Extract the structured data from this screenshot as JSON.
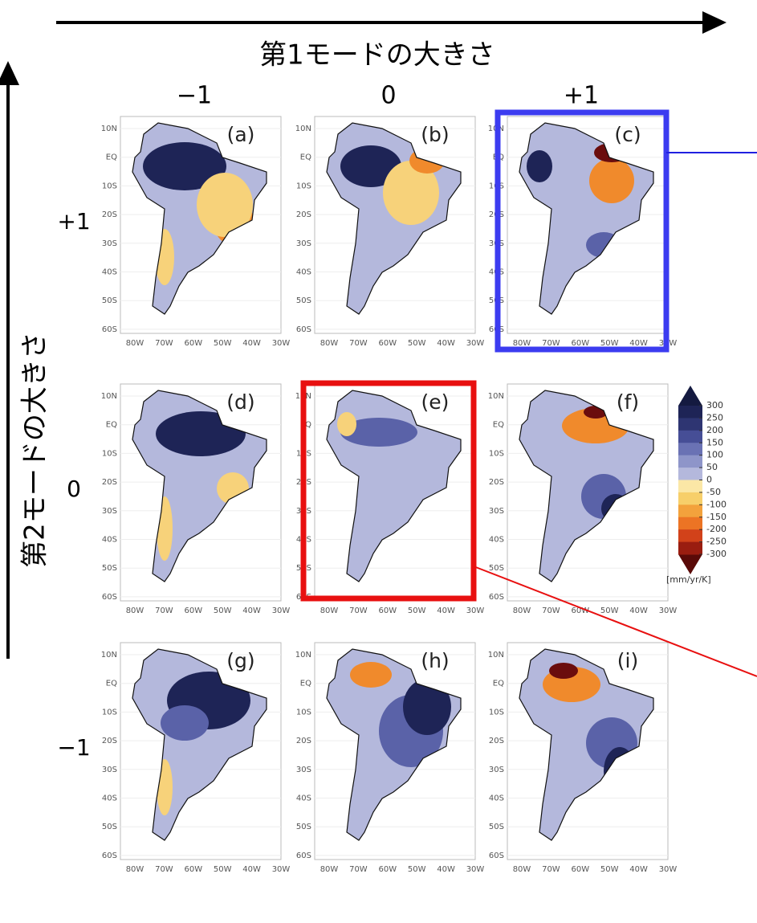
{
  "header": {
    "x_axis_label": "第1モードの大きさ",
    "y_axis_label": "第2モードの大きさ"
  },
  "columns": [
    "−1",
    "0",
    "+1"
  ],
  "rows": [
    "+1",
    "0",
    "−1"
  ],
  "panels": [
    {
      "label": "(a)"
    },
    {
      "label": "(b)"
    },
    {
      "label": "(c)"
    },
    {
      "label": "(d)"
    },
    {
      "label": "(e)"
    },
    {
      "label": "(f)"
    },
    {
      "label": "(g)"
    },
    {
      "label": "(h)"
    },
    {
      "label": "(i)"
    }
  ],
  "latitude_labels": [
    "10N",
    "EQ",
    "10S",
    "20S",
    "30S",
    "40S",
    "50S",
    "60S"
  ],
  "longitude_labels": [
    "80W",
    "70W",
    "60W",
    "50W",
    "40W",
    "30W"
  ],
  "colorbar": {
    "ticks": [
      300,
      250,
      200,
      150,
      100,
      50,
      0,
      -50,
      -100,
      -150,
      -200,
      -250,
      -300
    ],
    "colors": [
      "#141a40",
      "#1e2456",
      "#2e3572",
      "#464e96",
      "#6a72b4",
      "#8e95c9",
      "#b4b8dc",
      "#fbe7a6",
      "#f7cf6a",
      "#f3a23c",
      "#ec7424",
      "#d2421a",
      "#9a1d10",
      "#5a0a08"
    ],
    "unit": "[mm/yr/K]"
  }
}
